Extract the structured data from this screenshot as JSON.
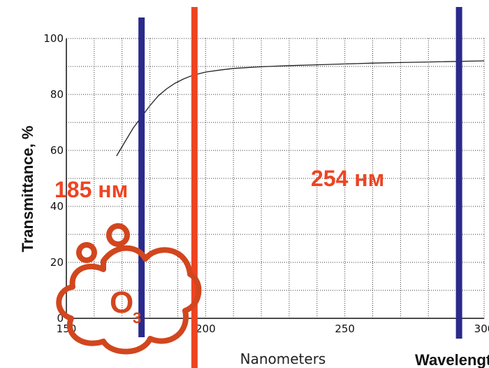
{
  "chart_data": {
    "type": "line",
    "title": "",
    "xlabel": "Nanometers",
    "ylabel": "Transmittance, %",
    "secondary_label": "Wavelength",
    "xlim": [
      150,
      300
    ],
    "ylim": [
      0,
      100
    ],
    "xticks": [
      150,
      200,
      250,
      300
    ],
    "yticks": [
      0,
      20,
      40,
      60,
      80,
      100
    ],
    "x_tick_labels": [
      "150",
      "200",
      "250",
      "300"
    ],
    "y_tick_labels": [
      "0",
      "20",
      "40",
      "60",
      "80",
      "100"
    ],
    "grid": true,
    "series": [
      {
        "x": [
          168,
          171,
          174,
          177,
          180,
          183,
          186,
          189,
          192,
          195,
          198,
          200,
          205,
          210,
          220,
          230,
          240,
          250,
          260,
          270,
          280,
          290,
          300
        ],
        "y": [
          58,
          63,
          68,
          72,
          76,
          79.5,
          82,
          84,
          85.5,
          86.7,
          87.5,
          88,
          88.7,
          89.3,
          89.9,
          90.3,
          90.6,
          90.9,
          91.2,
          91.4,
          91.6,
          91.8,
          92
        ]
      }
    ],
    "vertical_lines": [
      {
        "x": 177,
        "color": "#2a2a8c"
      },
      {
        "x": 196,
        "color": "#ee4422"
      },
      {
        "x": 291,
        "color": "#2a2a8c"
      }
    ],
    "annotations": [
      {
        "text": "185 нм",
        "color": "#ee4422"
      },
      {
        "text": "254 нм",
        "color": "#ee4422"
      }
    ]
  },
  "ozone_icon": {
    "letter": "O",
    "subscript": "3",
    "color": "#d2461e"
  }
}
